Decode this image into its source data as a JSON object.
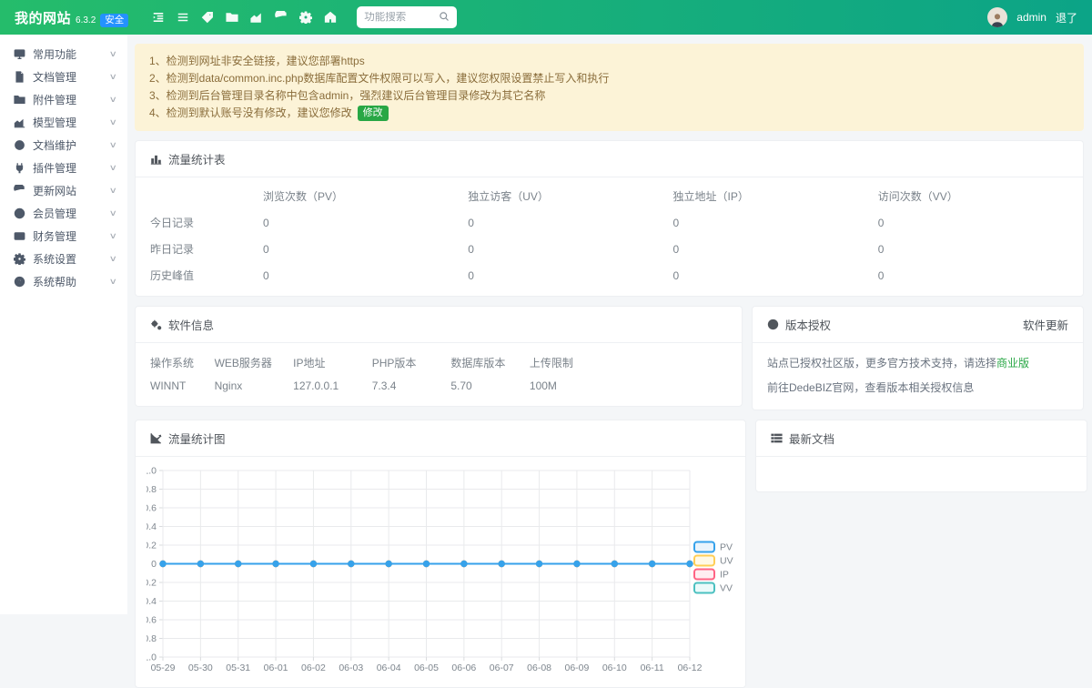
{
  "header": {
    "site_title": "我的网站",
    "version": "6.3.2",
    "safe_badge": "安全",
    "nav_icons": [
      "collapse-icon",
      "menu-icon",
      "tag-icon",
      "folder-icon",
      "chart-icon",
      "refresh-icon",
      "gear-icon",
      "home-icon"
    ],
    "search": {
      "placeholder": "功能搜索"
    },
    "user": {
      "name": "admin",
      "logout_label": "退了"
    }
  },
  "sidebar": {
    "items": [
      {
        "icon": "desktop-icon",
        "label": "常用功能"
      },
      {
        "icon": "document-icon",
        "label": "文档管理"
      },
      {
        "icon": "folder-icon",
        "label": "附件管理"
      },
      {
        "icon": "model-icon",
        "label": "模型管理"
      },
      {
        "icon": "maintain-icon",
        "label": "文档维护"
      },
      {
        "icon": "plugin-icon",
        "label": "插件管理"
      },
      {
        "icon": "refresh-icon",
        "label": "更新网站"
      },
      {
        "icon": "member-icon",
        "label": "会员管理"
      },
      {
        "icon": "finance-icon",
        "label": "财务管理"
      },
      {
        "icon": "settings-icon",
        "label": "系统设置"
      },
      {
        "icon": "help-icon",
        "label": "系统帮助"
      }
    ]
  },
  "warnings": {
    "items": [
      {
        "text": "1、检测到网址非安全链接，建议您部署https"
      },
      {
        "text": "2、检测到data/common.inc.php数据库配置文件权限可以写入，建议您权限设置禁止写入和执行"
      },
      {
        "text": "3、检测到后台管理目录名称中包含admin，强烈建议后台管理目录修改为其它名称"
      },
      {
        "text": "4、检测到默认账号没有修改，建议您修改",
        "action": "修改"
      }
    ]
  },
  "traffic_table": {
    "title": "流量统计表",
    "columns": [
      "浏览次数（PV）",
      "独立访客（UV）",
      "独立地址（IP）",
      "访问次数（VV）"
    ],
    "rows": [
      {
        "label": "今日记录",
        "values": [
          "0",
          "0",
          "0",
          "0"
        ]
      },
      {
        "label": "昨日记录",
        "values": [
          "0",
          "0",
          "0",
          "0"
        ]
      },
      {
        "label": "历史峰值",
        "values": [
          "0",
          "0",
          "0",
          "0"
        ]
      }
    ]
  },
  "software_info": {
    "title": "软件信息",
    "fields": [
      {
        "label": "操作系统",
        "value": "WINNT"
      },
      {
        "label": "WEB服务器",
        "value": "Nginx"
      },
      {
        "label": "IP地址",
        "value": "127.0.0.1"
      },
      {
        "label": "PHP版本",
        "value": "7.3.4"
      },
      {
        "label": "数据库版本",
        "value": "5.70"
      },
      {
        "label": "上传限制",
        "value": "100M"
      }
    ]
  },
  "license": {
    "title": "版本授权",
    "update_link": "软件更新",
    "line1_prefix": "站点已授权社区版，更多官方技术支持，请选择",
    "line1_link": "商业版",
    "line2": "前往DedeBIZ官网，查看版本相关授权信息"
  },
  "latest_docs": {
    "title": "最新文档"
  },
  "chart_panel": {
    "title": "流量统计图"
  },
  "chart_data": {
    "type": "line",
    "title": "流量统计图",
    "categories": [
      "05-29",
      "05-30",
      "05-31",
      "06-01",
      "06-02",
      "06-03",
      "06-04",
      "06-05",
      "06-06",
      "06-07",
      "06-08",
      "06-09",
      "06-10",
      "06-11",
      "06-12"
    ],
    "series": [
      {
        "name": "PV",
        "color": "#36a2eb",
        "tint": "#eaf4fc",
        "values": [
          0,
          0,
          0,
          0,
          0,
          0,
          0,
          0,
          0,
          0,
          0,
          0,
          0,
          0,
          0
        ]
      },
      {
        "name": "UV",
        "color": "#ffce56",
        "tint": "#fff9e6",
        "values": [
          0,
          0,
          0,
          0,
          0,
          0,
          0,
          0,
          0,
          0,
          0,
          0,
          0,
          0,
          0
        ]
      },
      {
        "name": "IP",
        "color": "#ff6384",
        "tint": "#ffedf1",
        "values": [
          0,
          0,
          0,
          0,
          0,
          0,
          0,
          0,
          0,
          0,
          0,
          0,
          0,
          0,
          0
        ]
      },
      {
        "name": "VV",
        "color": "#4bc0c0",
        "tint": "#eafafa",
        "values": [
          0,
          0,
          0,
          0,
          0,
          0,
          0,
          0,
          0,
          0,
          0,
          0,
          0,
          0,
          0
        ]
      }
    ],
    "ylim": [
      -1.0,
      1.0
    ],
    "yticks": [
      "1.0",
      "0.8",
      "0.6",
      "0.4",
      "0.2",
      "0",
      "-0.2",
      "-0.4",
      "-0.6",
      "-0.8",
      "-1.0"
    ],
    "xlabel": "",
    "ylabel": "",
    "grid": true,
    "legend_position": "right"
  },
  "colors": {
    "header_gradient_start": "#25bc6b",
    "header_gradient_end": "#0ca487",
    "safe_badge_blue": "#2492ff",
    "accent_green": "#28a745",
    "warning_bg": "#fcf3d7",
    "warning_text": "#8a6d3b"
  }
}
